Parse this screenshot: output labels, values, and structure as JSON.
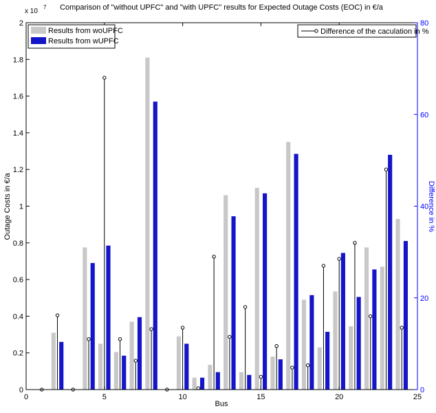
{
  "chart_data": {
    "type": "bar-stem",
    "title": "Comparison of \"without UPFC\" and \"with UPFC\" results for Expected Outage Costs (EOC) in €/a",
    "xlabel": "Bus",
    "ylabel": "Outage Costs in €/a",
    "y2label": "Difference in %",
    "y_exponent_base": "x 10",
    "y_exponent_power": "7",
    "x": [
      1,
      2,
      3,
      4,
      5,
      6,
      7,
      8,
      9,
      10,
      11,
      12,
      13,
      14,
      15,
      16,
      17,
      18,
      19,
      20,
      21,
      22,
      23,
      24
    ],
    "series": [
      {
        "name": "Results from woUPFC",
        "color": "#c8c8c8",
        "kind": "bar",
        "values": [
          0,
          0.31,
          0,
          0.775,
          0.25,
          0.205,
          0.37,
          1.81,
          0,
          0.29,
          0.065,
          0.135,
          1.06,
          0.095,
          1.1,
          0.18,
          1.35,
          0.49,
          0.23,
          0.535,
          0.345,
          0.775,
          0.67,
          0.93
        ]
      },
      {
        "name": "Results from wUPFC",
        "color": "#1414c8",
        "kind": "bar",
        "values": [
          0,
          0.26,
          0,
          0.69,
          0.785,
          0.185,
          0.395,
          1.57,
          0,
          0.25,
          0.065,
          0.095,
          0.945,
          0.08,
          1.07,
          0.165,
          1.285,
          0.515,
          0.315,
          0.745,
          0.505,
          0.655,
          1.28,
          0.81
        ]
      },
      {
        "name": "Difference of the caculation in %",
        "color": "#000000",
        "kind": "stem",
        "axis": "y2",
        "values": [
          0,
          16.2,
          0,
          11,
          68,
          11,
          6.3,
          13.2,
          0,
          13.5,
          0.3,
          29,
          11.5,
          18,
          2.8,
          9.5,
          4.8,
          5.3,
          27,
          28.5,
          32,
          16,
          48,
          13.5
        ]
      }
    ],
    "xlim": [
      0,
      25
    ],
    "xticks": [
      0,
      5,
      10,
      15,
      20,
      25
    ],
    "ylim": [
      0,
      2
    ],
    "yticks": [
      0,
      0.2,
      0.4,
      0.6,
      0.8,
      1,
      1.2,
      1.4,
      1.6,
      1.8,
      2
    ],
    "y2lim": [
      0,
      80
    ],
    "y2ticks": [
      0,
      20,
      40,
      60,
      80
    ],
    "y2color": "#0000ff"
  }
}
